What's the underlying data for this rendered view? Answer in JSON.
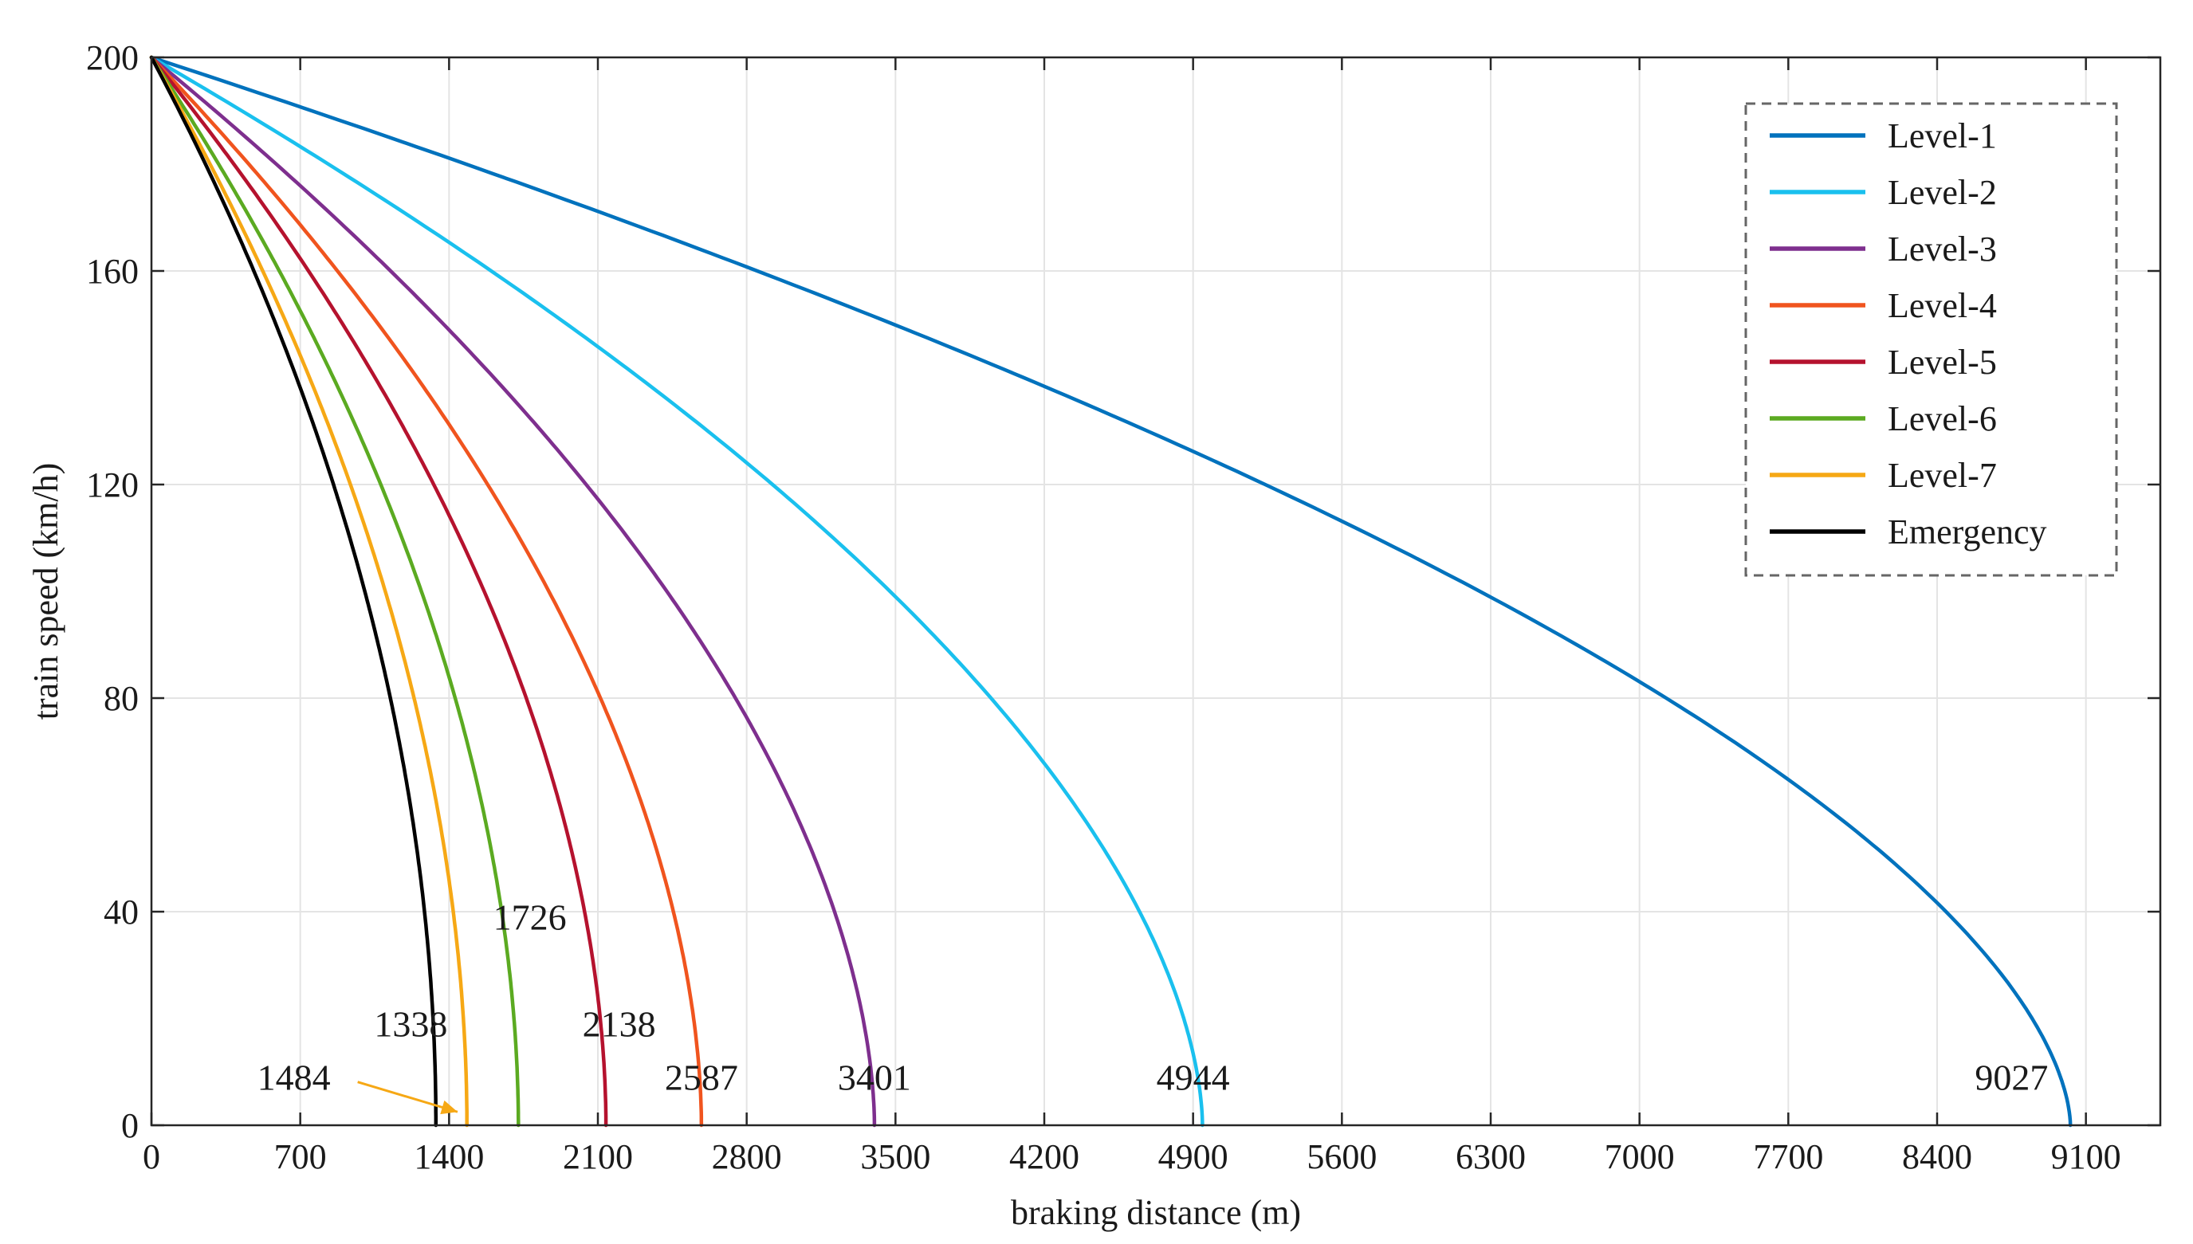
{
  "chart_data": {
    "type": "line",
    "xlabel": "braking distance (m)",
    "ylabel": "train speed (km/h)",
    "xlim": [
      0,
      9450
    ],
    "ylim": [
      0,
      200
    ],
    "xticks": [
      0,
      700,
      1400,
      2100,
      2800,
      3500,
      4200,
      4900,
      5600,
      6300,
      7000,
      7700,
      8400,
      9100
    ],
    "yticks": [
      0,
      40,
      80,
      120,
      160,
      200
    ],
    "grid": true,
    "legend_position": "top-right",
    "initial_speed": 200,
    "series": [
      {
        "name": "Level-1",
        "color": "#0072BD",
        "stop_distance": 9027,
        "shape_exponent": 0.7
      },
      {
        "name": "Level-2",
        "color": "#1AC0EE",
        "stop_distance": 4944,
        "shape_exponent": 0.75
      },
      {
        "name": "Level-3",
        "color": "#7E2F8E",
        "stop_distance": 3401,
        "shape_exponent": 0.8
      },
      {
        "name": "Level-4",
        "color": "#F0541E",
        "stop_distance": 2587,
        "shape_exponent": 0.85
      },
      {
        "name": "Level-5",
        "color": "#B5122E",
        "stop_distance": 2138,
        "shape_exponent": 0.9
      },
      {
        "name": "Level-6",
        "color": "#5BAA21",
        "stop_distance": 1726,
        "shape_exponent": 0.92
      },
      {
        "name": "Level-7",
        "color": "#F6A815",
        "stop_distance": 1484,
        "shape_exponent": 0.95
      },
      {
        "name": "Emergency",
        "color": "#000000",
        "stop_distance": 1338,
        "shape_exponent": 1.0
      }
    ],
    "annotations": [
      {
        "text": "9027",
        "series": "Level-1",
        "x": 8750,
        "y": 9
      },
      {
        "text": "4944",
        "series": "Level-2",
        "x": 4900,
        "y": 9
      },
      {
        "text": "3401",
        "series": "Level-3",
        "x": 3401,
        "y": 9
      },
      {
        "text": "2587",
        "series": "Level-4",
        "x": 2587,
        "y": 9
      },
      {
        "text": "2138",
        "series": "Level-5",
        "x": 2200,
        "y": 19
      },
      {
        "text": "1726",
        "series": "Level-6",
        "x": 1780,
        "y": 39
      },
      {
        "text": "1338",
        "series": "Emergency",
        "x": 1220,
        "y": 19
      },
      {
        "text": "1484",
        "series": "Level-7",
        "x": 670,
        "y": 9,
        "arrow_to": [
          1440,
          2.5
        ]
      }
    ]
  }
}
